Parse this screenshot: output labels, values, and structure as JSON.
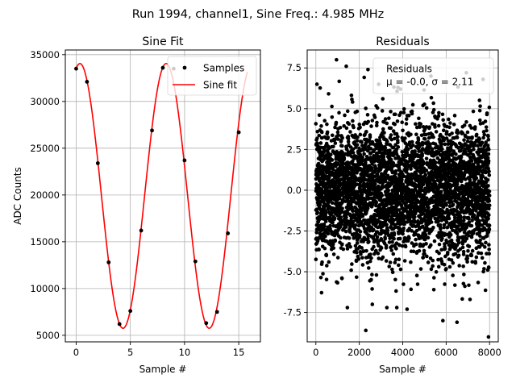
{
  "suptitle": "Run 1994, channel1, Sine Freq.: 4.985 MHz",
  "chart_data": [
    {
      "type": "scatter",
      "title": "Sine Fit",
      "xlabel": "Sample #",
      "ylabel": "ADC Counts",
      "xlim": [
        -1,
        17
      ],
      "ylim": [
        4300,
        35500
      ],
      "xticks": [
        0,
        5,
        10,
        15
      ],
      "yticks": [
        5000,
        10000,
        15000,
        20000,
        25000,
        30000,
        35000
      ],
      "grid": true,
      "legend": {
        "position": "top-right",
        "entries": [
          "Samples",
          "Sine fit"
        ]
      },
      "series": [
        {
          "name": "Samples",
          "marker": "dot",
          "color": "#000000",
          "x": [
            0,
            1,
            2,
            3,
            4,
            5,
            6,
            7,
            8,
            9,
            10,
            11,
            12,
            13,
            14,
            15
          ],
          "y": [
            33500,
            32100,
            23400,
            12800,
            6200,
            7600,
            16200,
            26900,
            33600,
            33500,
            23700,
            12900,
            6300,
            7500,
            15900,
            26700
          ]
        },
        {
          "name": "Sine fit",
          "line": true,
          "color": "#ff0000",
          "amplitude": 14150,
          "offset": 19900,
          "period": 7.95,
          "peak_x": 0.35,
          "x_range": [
            0,
            15.8
          ]
        }
      ]
    },
    {
      "type": "scatter",
      "title": "Residuals",
      "xlabel": "Sample #",
      "xlim": [
        -400,
        8400
      ],
      "ylim": [
        -9.3,
        8.6
      ],
      "xticks": [
        0,
        2000,
        4000,
        6000,
        8000
      ],
      "yticks": [
        -7.5,
        -5.0,
        -2.5,
        0.0,
        2.5,
        5.0,
        7.5
      ],
      "grid": true,
      "legend": {
        "position": "top-right",
        "entries": [
          "Residuals",
          "μ = -0.0, σ = 2.11"
        ]
      },
      "series": [
        {
          "name": "Residuals",
          "marker": "dot",
          "color": "#000000",
          "n_points": 8000,
          "mean": 0.0,
          "sigma": 2.11,
          "x_range": [
            0,
            7999
          ],
          "outliers": [
            [
              950,
              8.0
            ],
            [
              2300,
              -8.6
            ],
            [
              7950,
              -9.0
            ],
            [
              5850,
              -8.0
            ],
            [
              4200,
              -7.3
            ],
            [
              6500,
              -8.1
            ],
            [
              2400,
              7.4
            ],
            [
              1400,
              7.6
            ],
            [
              50,
              6.5
            ],
            [
              3900,
              6.2
            ],
            [
              5300,
              7.0
            ],
            [
              7700,
              6.8
            ],
            [
              2600,
              -7.0
            ],
            [
              1450,
              -7.2
            ],
            [
              7100,
              -6.7
            ]
          ]
        }
      ]
    }
  ]
}
